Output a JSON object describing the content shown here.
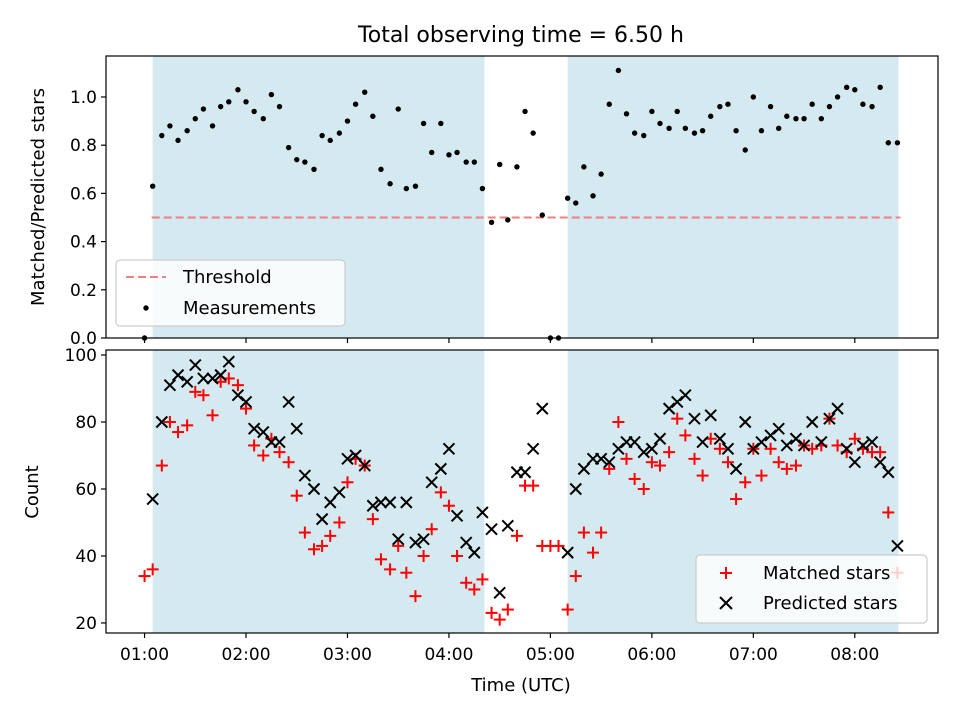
{
  "chart_data": [
    {
      "type": "scatter",
      "title": "Total observing time = 6.50 h",
      "ylabel": "Matched/Predicted stars",
      "xlabel": "",
      "xlim": [
        0.98,
        8.82
      ],
      "ylim": [
        0,
        1.17
      ],
      "yticks": [
        0.0,
        0.2,
        0.4,
        0.6,
        0.8,
        1.0
      ],
      "ytick_labels": [
        "0.0",
        "0.2",
        "0.4",
        "0.6",
        "0.8",
        "1.0"
      ],
      "shaded_regions": [
        [
          1.08,
          4.35
        ],
        [
          5.17,
          8.43
        ]
      ],
      "shade_color": "#d4eaf0",
      "threshold": {
        "name": "Threshold",
        "value": 0.5,
        "x": [
          1.07,
          8.45
        ],
        "color": "#f07f7f",
        "style": "dashed"
      },
      "series": [
        {
          "name": "Measurements",
          "color": "#000000",
          "x": [
            1.0,
            1.08,
            1.17,
            1.25,
            1.33,
            1.42,
            1.5,
            1.58,
            1.67,
            1.75,
            1.83,
            1.92,
            2.0,
            2.08,
            2.17,
            2.25,
            2.33,
            2.42,
            2.5,
            2.58,
            2.67,
            2.75,
            2.83,
            2.92,
            3.0,
            3.08,
            3.17,
            3.25,
            3.33,
            3.42,
            3.5,
            3.58,
            3.67,
            3.75,
            3.83,
            3.92,
            4.0,
            4.08,
            4.17,
            4.25,
            4.33,
            4.42,
            4.5,
            4.58,
            4.67,
            4.75,
            4.83,
            4.92,
            5.0,
            5.08,
            5.17,
            5.25,
            5.33,
            5.42,
            5.5,
            5.58,
            5.67,
            5.75,
            5.83,
            5.92,
            6.0,
            6.08,
            6.17,
            6.25,
            6.33,
            6.42,
            6.5,
            6.58,
            6.67,
            6.75,
            6.83,
            6.92,
            7.0,
            7.08,
            7.17,
            7.25,
            7.33,
            7.42,
            7.5,
            7.58,
            7.67,
            7.75,
            7.83,
            7.92,
            8.0,
            8.08,
            8.17,
            8.25,
            8.33,
            8.42
          ],
          "y": [
            0.0,
            0.63,
            0.84,
            0.88,
            0.82,
            0.86,
            0.91,
            0.95,
            0.88,
            0.96,
            0.98,
            1.03,
            0.98,
            0.94,
            0.91,
            1.01,
            0.96,
            0.79,
            0.74,
            0.73,
            0.7,
            0.84,
            0.82,
            0.85,
            0.9,
            0.97,
            1.02,
            0.92,
            0.7,
            0.64,
            0.95,
            0.62,
            0.63,
            0.89,
            0.77,
            0.89,
            0.76,
            0.77,
            0.73,
            0.73,
            0.62,
            0.48,
            0.72,
            0.49,
            0.71,
            0.94,
            0.85,
            0.51,
            0.0,
            0.0,
            0.58,
            0.56,
            0.71,
            0.59,
            0.68,
            0.97,
            1.11,
            0.93,
            0.85,
            0.84,
            0.94,
            0.89,
            0.87,
            0.94,
            0.87,
            0.85,
            0.86,
            0.92,
            0.96,
            0.97,
            0.86,
            0.78,
            1.0,
            0.86,
            0.96,
            0.87,
            0.92,
            0.91,
            0.91,
            0.97,
            0.91,
            0.96,
            1.0,
            1.04,
            1.03,
            0.97,
            0.96,
            1.04,
            0.81,
            0.81
          ]
        }
      ],
      "legend": {
        "placement": "lower-left",
        "entries": [
          "Threshold",
          "Measurements"
        ]
      }
    },
    {
      "type": "scatter",
      "title": "",
      "ylabel": "Count",
      "xlabel": "Time (UTC)",
      "xlim": [
        0.62,
        8.82
      ],
      "ylim": [
        17,
        101.5
      ],
      "xticks": [
        1,
        2,
        3,
        4,
        5,
        6,
        7,
        8
      ],
      "xtick_labels": [
        "01:00",
        "02:00",
        "03:00",
        "04:00",
        "05:00",
        "06:00",
        "07:00",
        "08:00"
      ],
      "yticks": [
        20,
        40,
        60,
        80,
        100
      ],
      "ytick_labels": [
        "20",
        "40",
        "60",
        "80",
        "100"
      ],
      "shaded_regions": [
        [
          1.08,
          4.35
        ],
        [
          5.17,
          8.43
        ]
      ],
      "shade_color": "#d4eaf0",
      "series": [
        {
          "name": "Matched stars",
          "marker": "plus",
          "color": "#ff0000",
          "x": [
            1.0,
            1.08,
            1.17,
            1.25,
            1.33,
            1.42,
            1.5,
            1.58,
            1.67,
            1.75,
            1.83,
            1.92,
            2.0,
            2.08,
            2.17,
            2.25,
            2.33,
            2.42,
            2.5,
            2.58,
            2.67,
            2.75,
            2.83,
            2.92,
            3.0,
            3.08,
            3.17,
            3.25,
            3.33,
            3.42,
            3.5,
            3.58,
            3.67,
            3.75,
            3.83,
            3.92,
            4.0,
            4.08,
            4.17,
            4.25,
            4.33,
            4.42,
            4.5,
            4.58,
            4.67,
            4.75,
            4.83,
            4.92,
            5.0,
            5.08,
            5.17,
            5.25,
            5.33,
            5.42,
            5.5,
            5.58,
            5.67,
            5.75,
            5.83,
            5.92,
            6.0,
            6.08,
            6.17,
            6.25,
            6.33,
            6.42,
            6.5,
            6.58,
            6.67,
            6.75,
            6.83,
            6.92,
            7.0,
            7.08,
            7.17,
            7.25,
            7.33,
            7.42,
            7.5,
            7.58,
            7.67,
            7.75,
            7.83,
            7.92,
            8.0,
            8.08,
            8.17,
            8.25,
            8.33,
            8.42
          ],
          "y": [
            34,
            36,
            67,
            80,
            77,
            79,
            89,
            88,
            82,
            92,
            93,
            91,
            84,
            73,
            70,
            75,
            71,
            68,
            58,
            47,
            42,
            43,
            46,
            50,
            62,
            69,
            67,
            51,
            39,
            36,
            43,
            35,
            28,
            40,
            48,
            59,
            55,
            40,
            32,
            30,
            33,
            23,
            21,
            24,
            46,
            61,
            61,
            43,
            43,
            43,
            24,
            34,
            47,
            41,
            47,
            66,
            80,
            69,
            63,
            60,
            68,
            67,
            71,
            81,
            76,
            69,
            64,
            75,
            72,
            68,
            57,
            62,
            72,
            64,
            72,
            68,
            66,
            67,
            73,
            72,
            73,
            81,
            73,
            71,
            75,
            72,
            71,
            71,
            53,
            35
          ]
        },
        {
          "name": "Predicted stars",
          "marker": "x",
          "color": "#000000",
          "x": [
            1.08,
            1.17,
            1.25,
            1.33,
            1.42,
            1.5,
            1.58,
            1.67,
            1.75,
            1.83,
            1.92,
            2.0,
            2.08,
            2.17,
            2.25,
            2.33,
            2.42,
            2.5,
            2.58,
            2.67,
            2.75,
            2.83,
            2.92,
            3.0,
            3.08,
            3.17,
            3.25,
            3.33,
            3.42,
            3.5,
            3.58,
            3.67,
            3.75,
            3.83,
            3.92,
            4.0,
            4.08,
            4.17,
            4.25,
            4.33,
            4.42,
            4.5,
            4.58,
            4.67,
            4.75,
            4.83,
            4.92,
            5.17,
            5.25,
            5.33,
            5.42,
            5.5,
            5.58,
            5.67,
            5.75,
            5.83,
            5.92,
            6.0,
            6.08,
            6.17,
            6.25,
            6.33,
            6.42,
            6.5,
            6.58,
            6.67,
            6.75,
            6.83,
            6.92,
            7.0,
            7.08,
            7.17,
            7.25,
            7.33,
            7.42,
            7.5,
            7.58,
            7.67,
            7.75,
            7.83,
            7.92,
            8.0,
            8.08,
            8.17,
            8.25,
            8.33,
            8.42
          ],
          "y": [
            57,
            80,
            91,
            94,
            92,
            97,
            93,
            93,
            94,
            98,
            88,
            86,
            78,
            77,
            74,
            74,
            86,
            78,
            64,
            60,
            51,
            56,
            59,
            69,
            70,
            67,
            55,
            56,
            56,
            45,
            56,
            44,
            45,
            62,
            66,
            72,
            52,
            44,
            41,
            53,
            48,
            29,
            49,
            65,
            65,
            72,
            84,
            41,
            60,
            66,
            69,
            69,
            68,
            72,
            74,
            74,
            71,
            72,
            75,
            84,
            86,
            88,
            81,
            74,
            82,
            75,
            72,
            66,
            80,
            72,
            74,
            76,
            78,
            73,
            75,
            73,
            80,
            74,
            81,
            84,
            72,
            68,
            73,
            74,
            68,
            65,
            43
          ]
        }
      ],
      "legend": {
        "placement": "lower-right",
        "entries": [
          "Matched stars",
          "Predicted stars"
        ]
      }
    }
  ]
}
